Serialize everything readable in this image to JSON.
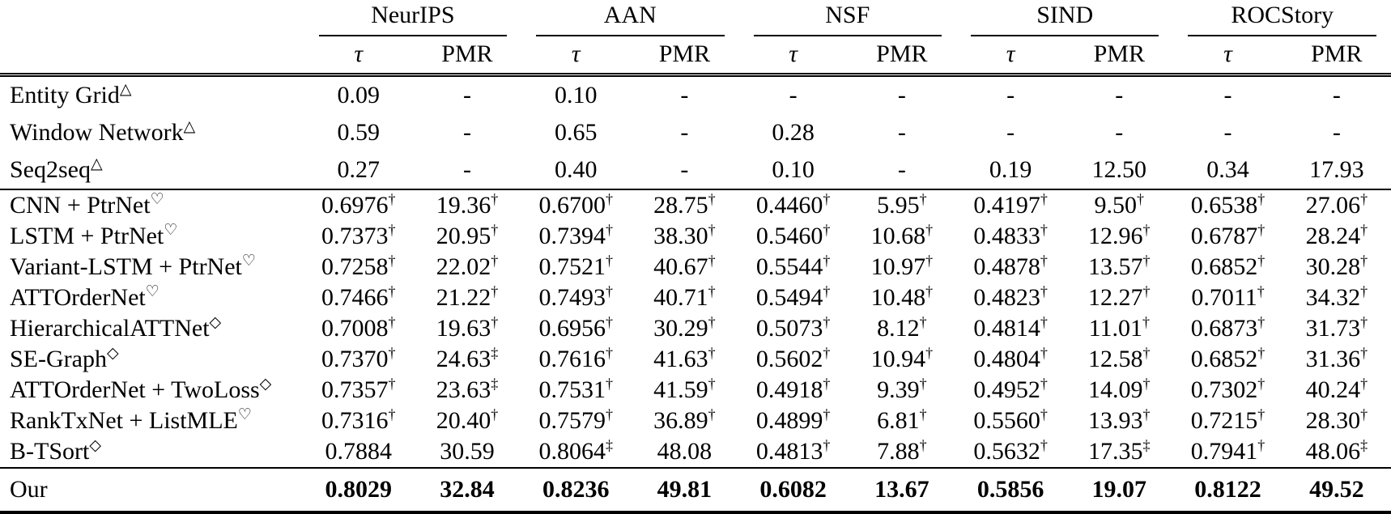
{
  "table": {
    "groups": [
      "NeurIPS",
      "AAN",
      "NSF",
      "SIND",
      "ROCStory"
    ],
    "tau_label": "τ",
    "pmr_label": "PMR",
    "rows": [
      {
        "label": "Entity Grid",
        "sup": "△",
        "sec": 1,
        "cells": [
          {
            "v": "0.09",
            "m": ""
          },
          {
            "v": "-",
            "m": ""
          },
          {
            "v": "0.10",
            "m": ""
          },
          {
            "v": "-",
            "m": ""
          },
          {
            "v": "-",
            "m": ""
          },
          {
            "v": "-",
            "m": ""
          },
          {
            "v": "-",
            "m": ""
          },
          {
            "v": "-",
            "m": ""
          },
          {
            "v": "-",
            "m": ""
          },
          {
            "v": "-",
            "m": ""
          }
        ]
      },
      {
        "label": "Window Network",
        "sup": "△",
        "sec": 1,
        "cells": [
          {
            "v": "0.59",
            "m": ""
          },
          {
            "v": "-",
            "m": ""
          },
          {
            "v": "0.65",
            "m": ""
          },
          {
            "v": "-",
            "m": ""
          },
          {
            "v": "0.28",
            "m": ""
          },
          {
            "v": "-",
            "m": ""
          },
          {
            "v": "-",
            "m": ""
          },
          {
            "v": "-",
            "m": ""
          },
          {
            "v": "-",
            "m": ""
          },
          {
            "v": "-",
            "m": ""
          }
        ]
      },
      {
        "label": "Seq2seq",
        "sup": "△",
        "sec": 1,
        "cells": [
          {
            "v": "0.27",
            "m": ""
          },
          {
            "v": "-",
            "m": ""
          },
          {
            "v": "0.40",
            "m": ""
          },
          {
            "v": "-",
            "m": ""
          },
          {
            "v": "0.10",
            "m": ""
          },
          {
            "v": "-",
            "m": ""
          },
          {
            "v": "0.19",
            "m": ""
          },
          {
            "v": "12.50",
            "m": ""
          },
          {
            "v": "0.34",
            "m": ""
          },
          {
            "v": "17.93",
            "m": ""
          }
        ]
      },
      {
        "label": "CNN + PtrNet",
        "sup": "♡",
        "sec": 2,
        "section_start": true,
        "cells": [
          {
            "v": "0.6976",
            "m": "†"
          },
          {
            "v": "19.36",
            "m": "†"
          },
          {
            "v": "0.6700",
            "m": "†"
          },
          {
            "v": "28.75",
            "m": "†"
          },
          {
            "v": "0.4460",
            "m": "†"
          },
          {
            "v": "5.95",
            "m": "†"
          },
          {
            "v": "0.4197",
            "m": "†"
          },
          {
            "v": "9.50",
            "m": "†"
          },
          {
            "v": "0.6538",
            "m": "†"
          },
          {
            "v": "27.06",
            "m": "†"
          }
        ]
      },
      {
        "label": "LSTM + PtrNet",
        "sup": "♡",
        "sec": 2,
        "cells": [
          {
            "v": "0.7373",
            "m": "†"
          },
          {
            "v": "20.95",
            "m": "†"
          },
          {
            "v": "0.7394",
            "m": "†"
          },
          {
            "v": "38.30",
            "m": "†"
          },
          {
            "v": "0.5460",
            "m": "†"
          },
          {
            "v": "10.68",
            "m": "†"
          },
          {
            "v": "0.4833",
            "m": "†"
          },
          {
            "v": "12.96",
            "m": "†"
          },
          {
            "v": "0.6787",
            "m": "†"
          },
          {
            "v": "28.24",
            "m": "†"
          }
        ]
      },
      {
        "label": "Variant-LSTM + PtrNet",
        "sup": "♡",
        "sec": 2,
        "cells": [
          {
            "v": "0.7258",
            "m": "†"
          },
          {
            "v": "22.02",
            "m": "†"
          },
          {
            "v": "0.7521",
            "m": "†"
          },
          {
            "v": "40.67",
            "m": "†"
          },
          {
            "v": "0.5544",
            "m": "†"
          },
          {
            "v": "10.97",
            "m": "†"
          },
          {
            "v": "0.4878",
            "m": "†"
          },
          {
            "v": "13.57",
            "m": "†"
          },
          {
            "v": "0.6852",
            "m": "†"
          },
          {
            "v": "30.28",
            "m": "†"
          }
        ]
      },
      {
        "label": "ATTOrderNet",
        "sup": "♡",
        "sec": 2,
        "cells": [
          {
            "v": "0.7466",
            "m": "†"
          },
          {
            "v": "21.22",
            "m": "†"
          },
          {
            "v": "0.7493",
            "m": "†"
          },
          {
            "v": "40.71",
            "m": "†"
          },
          {
            "v": "0.5494",
            "m": "†"
          },
          {
            "v": "10.48",
            "m": "†"
          },
          {
            "v": "0.4823",
            "m": "†"
          },
          {
            "v": "12.27",
            "m": "†"
          },
          {
            "v": "0.7011",
            "m": "†"
          },
          {
            "v": "34.32",
            "m": "†"
          }
        ]
      },
      {
        "label": "HierarchicalATTNet",
        "sup": "◇",
        "sec": 2,
        "cells": [
          {
            "v": "0.7008",
            "m": "†"
          },
          {
            "v": "19.63",
            "m": "†"
          },
          {
            "v": "0.6956",
            "m": "†"
          },
          {
            "v": "30.29",
            "m": "†"
          },
          {
            "v": "0.5073",
            "m": "†"
          },
          {
            "v": "8.12",
            "m": "†"
          },
          {
            "v": "0.4814",
            "m": "†"
          },
          {
            "v": "11.01",
            "m": "†"
          },
          {
            "v": "0.6873",
            "m": "†"
          },
          {
            "v": "31.73",
            "m": "†"
          }
        ]
      },
      {
        "label": "SE-Graph",
        "sup": "◇",
        "sec": 2,
        "cells": [
          {
            "v": "0.7370",
            "m": "†"
          },
          {
            "v": "24.63",
            "m": "‡"
          },
          {
            "v": "0.7616",
            "m": "†"
          },
          {
            "v": "41.63",
            "m": "†"
          },
          {
            "v": "0.5602",
            "m": "†"
          },
          {
            "v": "10.94",
            "m": "†"
          },
          {
            "v": "0.4804",
            "m": "†"
          },
          {
            "v": "12.58",
            "m": "†"
          },
          {
            "v": "0.6852",
            "m": "†"
          },
          {
            "v": "31.36",
            "m": "†"
          }
        ]
      },
      {
        "label": "ATTOrderNet + TwoLoss",
        "sup": "◇",
        "sec": 2,
        "cells": [
          {
            "v": "0.7357",
            "m": "†"
          },
          {
            "v": "23.63",
            "m": "‡"
          },
          {
            "v": "0.7531",
            "m": "†"
          },
          {
            "v": "41.59",
            "m": "†"
          },
          {
            "v": "0.4918",
            "m": "†"
          },
          {
            "v": "9.39",
            "m": "†"
          },
          {
            "v": "0.4952",
            "m": "†"
          },
          {
            "v": "14.09",
            "m": "†"
          },
          {
            "v": "0.7302",
            "m": "†"
          },
          {
            "v": "40.24",
            "m": "†"
          }
        ]
      },
      {
        "label": "RankTxNet + ListMLE",
        "sup": "♡",
        "sec": 2,
        "cells": [
          {
            "v": "0.7316",
            "m": "†"
          },
          {
            "v": "20.40",
            "m": "†"
          },
          {
            "v": "0.7579",
            "m": "†"
          },
          {
            "v": "36.89",
            "m": "†"
          },
          {
            "v": "0.4899",
            "m": "†"
          },
          {
            "v": "6.81",
            "m": "†"
          },
          {
            "v": "0.5560",
            "m": "†"
          },
          {
            "v": "13.93",
            "m": "†"
          },
          {
            "v": "0.7215",
            "m": "†"
          },
          {
            "v": "28.30",
            "m": "†"
          }
        ]
      },
      {
        "label": "B-TSort",
        "sup": "◇",
        "sec": 2,
        "cells": [
          {
            "v": "0.7884",
            "m": ""
          },
          {
            "v": "30.59",
            "m": ""
          },
          {
            "v": "0.8064",
            "m": "‡"
          },
          {
            "v": "48.08",
            "m": ""
          },
          {
            "v": "0.4813",
            "m": "†"
          },
          {
            "v": "7.88",
            "m": "†"
          },
          {
            "v": "0.5632",
            "m": "†"
          },
          {
            "v": "17.35",
            "m": "‡"
          },
          {
            "v": "0.7941",
            "m": "†"
          },
          {
            "v": "48.06",
            "m": "‡"
          }
        ]
      },
      {
        "label": "Our",
        "sup": "",
        "sec": 3,
        "section_start": true,
        "bold": true,
        "cells": [
          {
            "v": "0.8029",
            "m": ""
          },
          {
            "v": "32.84",
            "m": ""
          },
          {
            "v": "0.8236",
            "m": ""
          },
          {
            "v": "49.81",
            "m": ""
          },
          {
            "v": "0.6082",
            "m": ""
          },
          {
            "v": "13.67",
            "m": ""
          },
          {
            "v": "0.5856",
            "m": ""
          },
          {
            "v": "19.07",
            "m": ""
          },
          {
            "v": "0.8122",
            "m": ""
          },
          {
            "v": "49.52",
            "m": ""
          }
        ]
      }
    ]
  }
}
